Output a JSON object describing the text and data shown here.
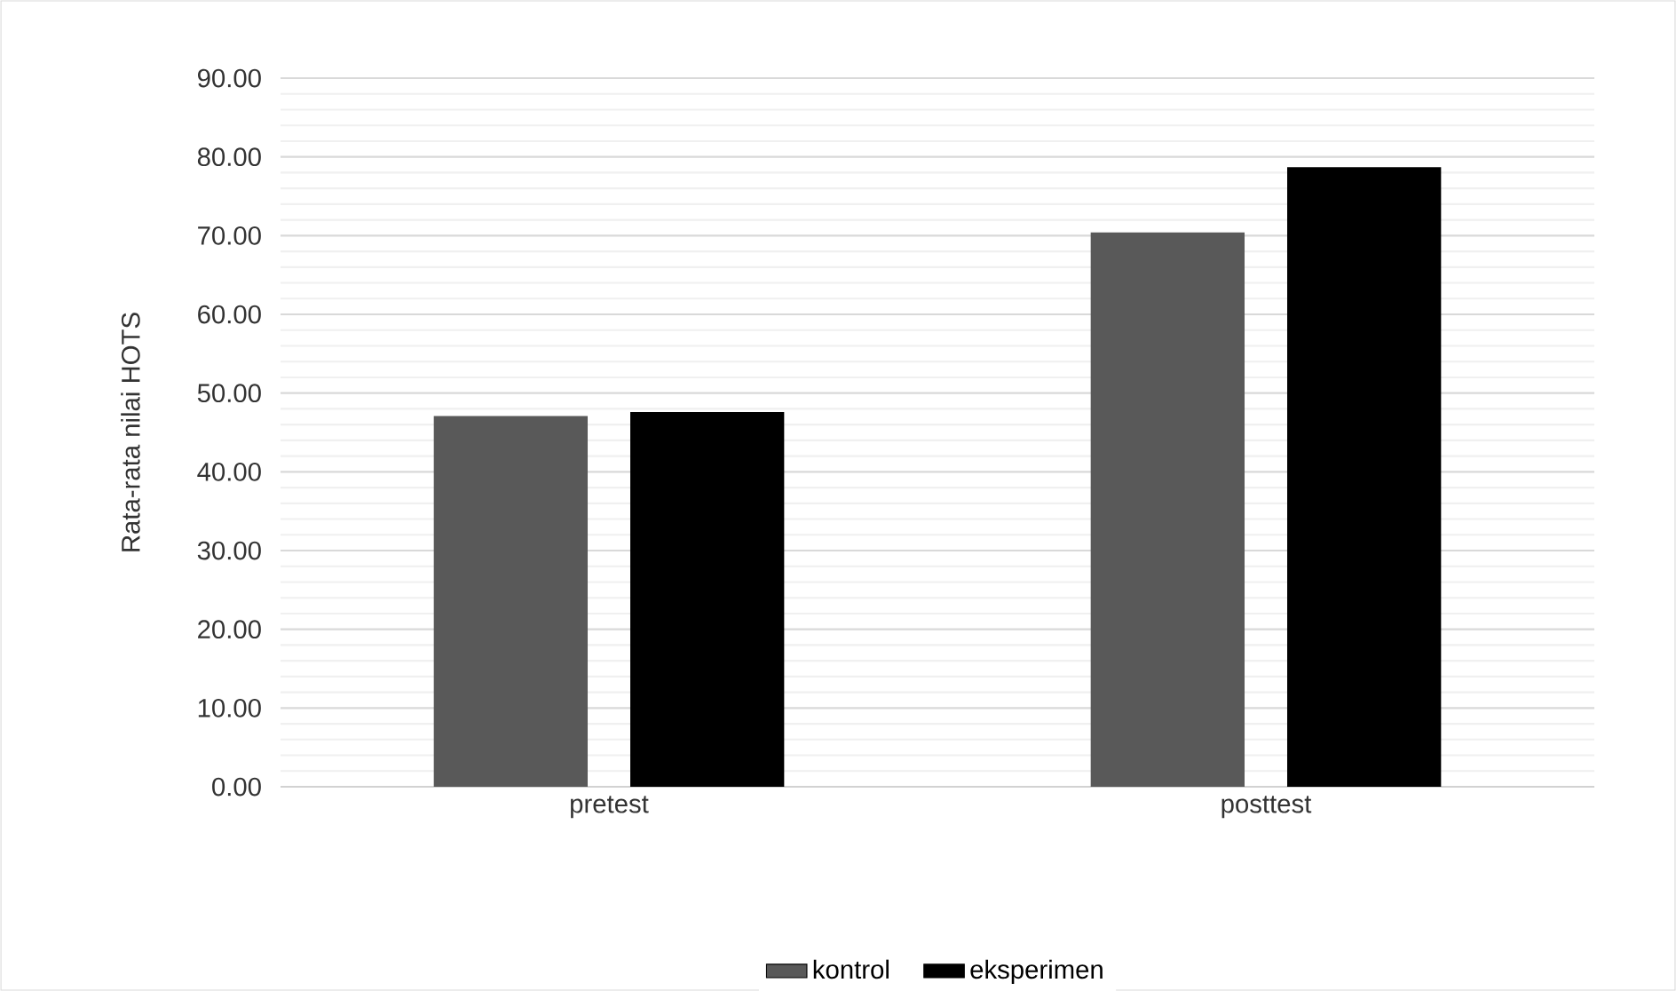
{
  "chart_data": {
    "type": "bar",
    "ylabel": "Rata-rata nilai HOTS",
    "categories": [
      "pretest",
      "posttest"
    ],
    "series": [
      {
        "name": "kontrol",
        "color": "#595959",
        "values": [
          47.1,
          70.4
        ]
      },
      {
        "name": "eksperimen",
        "color": "#000000",
        "values": [
          47.6,
          78.7
        ]
      }
    ],
    "ylim": [
      0,
      90
    ],
    "yticks": [
      {
        "value": 0,
        "label": "0.00"
      },
      {
        "value": 10,
        "label": "10.00"
      },
      {
        "value": 20,
        "label": "20.00"
      },
      {
        "value": 30,
        "label": "30.00"
      },
      {
        "value": 40,
        "label": "40.00"
      },
      {
        "value": 50,
        "label": "50.00"
      },
      {
        "value": 60,
        "label": "60.00"
      },
      {
        "value": 70,
        "label": "70.00"
      },
      {
        "value": 80,
        "label": "80.00"
      },
      {
        "value": 90,
        "label": "90.00"
      }
    ],
    "grid": "y",
    "legend": "bottom"
  }
}
